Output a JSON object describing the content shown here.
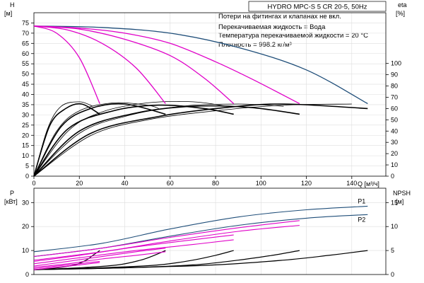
{
  "title": "HYDRO MPC-S 5 CR 20-5, 50Hz",
  "notes": [
    "Потери на фитингах и клапанах не вкл.",
    "Перекачиваемая жидкость = Вода",
    "Температура перекачиваемой жидкости = 20 °C",
    "Плотность = 998.2 кг/м³"
  ],
  "colors": {
    "performance": "#1f4e79",
    "efficiency": "#000000",
    "pink": "#e000c8",
    "grid": "#dddddd",
    "axis": "#000000"
  },
  "chart_data": [
    {
      "type": "line",
      "name": "qh-efficiency",
      "xlabel": "Q [м³/ч]",
      "ylabel_left": "H",
      "ylabel_left_unit": "[м]",
      "ylabel_right": "eta",
      "ylabel_right_unit": "[%]",
      "xlim": [
        0,
        155
      ],
      "ylim": [
        0,
        80
      ],
      "y2lim": [
        0,
        145
      ],
      "x_ticks": [
        0,
        20,
        40,
        60,
        80,
        100,
        120,
        140
      ],
      "y_ticks": [
        0,
        5,
        10,
        15,
        20,
        25,
        30,
        35,
        40,
        45,
        50,
        55,
        60,
        65,
        70,
        75
      ],
      "y2_ticks": [
        0,
        10,
        20,
        30,
        40,
        50,
        60,
        70,
        80,
        90,
        100
      ],
      "head_series": [
        {
          "color": "#1f4e79",
          "x": [
            0,
            30,
            60,
            90,
            120,
            147
          ],
          "y": [
            73.5,
            72.8,
            70,
            63,
            52,
            35.5
          ]
        },
        {
          "color": "#e000c8",
          "x": [
            0,
            20,
            40,
            60,
            80,
            97,
            117
          ],
          "y": [
            73.5,
            72.5,
            70,
            65,
            56,
            47,
            35.5
          ]
        },
        {
          "color": "#e000c8",
          "x": [
            0,
            20,
            40,
            60,
            75,
            88
          ],
          "y": [
            73.5,
            72,
            67,
            59,
            48,
            35.5
          ]
        },
        {
          "color": "#e000c8",
          "x": [
            0,
            15,
            30,
            45,
            58
          ],
          "y": [
            73.5,
            71.5,
            65,
            53,
            35.5
          ]
        },
        {
          "color": "#e000c8",
          "x": [
            0,
            10,
            20,
            29
          ],
          "y": [
            73.5,
            70,
            58,
            35.5
          ]
        }
      ],
      "efficiency_series": [
        {
          "width": 1.6,
          "x": [
            0,
            25,
            55,
            85,
            110,
            147
          ],
          "y": [
            0,
            38,
            53,
            61,
            64,
            60
          ]
        },
        {
          "width": 1.6,
          "x": [
            0,
            20,
            45,
            70,
            95,
            117
          ],
          "y": [
            0,
            40,
            56,
            62,
            61,
            55
          ]
        },
        {
          "width": 1.6,
          "x": [
            0,
            15,
            35,
            55,
            75,
            88
          ],
          "y": [
            0,
            42,
            58,
            63,
            60,
            55
          ]
        },
        {
          "width": 1.6,
          "x": [
            0,
            12,
            25,
            40,
            58
          ],
          "y": [
            0,
            44,
            60,
            64,
            55
          ]
        },
        {
          "width": 1.6,
          "x": [
            0,
            7,
            14,
            21,
            29
          ],
          "y": [
            0,
            45,
            60,
            64,
            55
          ]
        },
        {
          "width": 0.8,
          "x": [
            0,
            25,
            50,
            80,
            110,
            140
          ],
          "y": [
            0,
            36,
            50,
            58,
            63,
            64
          ]
        },
        {
          "width": 0.8,
          "x": [
            0,
            20,
            40,
            65,
            90,
            110
          ],
          "y": [
            0,
            38,
            53,
            62,
            64,
            62
          ]
        },
        {
          "width": 0.8,
          "x": [
            0,
            15,
            30,
            50,
            70,
            85
          ],
          "y": [
            0,
            40,
            57,
            65,
            66,
            62
          ]
        },
        {
          "width": 0.8,
          "x": [
            0,
            10,
            20,
            35,
            50,
            55
          ],
          "y": [
            0,
            40,
            58,
            65,
            63,
            60
          ]
        },
        {
          "width": 0.8,
          "x": [
            0,
            6,
            12,
            20,
            26
          ],
          "y": [
            0,
            42,
            62,
            66,
            62
          ]
        }
      ]
    },
    {
      "type": "line",
      "name": "power-npsh",
      "xlabel": "Q [м³/ч]",
      "ylabel_left": "P",
      "ylabel_left_unit": "[кВт]",
      "ylabel_right": "NPSH",
      "ylabel_right_unit": "[м]",
      "xlim": [
        0,
        155
      ],
      "ylim": [
        0,
        36
      ],
      "y2lim": [
        0,
        18
      ],
      "y_ticks": [
        0,
        10,
        20,
        30
      ],
      "y2_ticks": [
        0,
        5,
        10,
        15
      ],
      "power_series": [
        {
          "label": "P1",
          "color": "#1f4e79",
          "x": [
            0,
            30,
            60,
            90,
            120,
            147
          ],
          "y": [
            9.5,
            13,
            19,
            24,
            27,
            28.5
          ]
        },
        {
          "label": "P2",
          "color": "#1f4e79",
          "x": [
            0,
            30,
            60,
            90,
            120,
            147
          ],
          "y": [
            7.5,
            11,
            16,
            20.5,
            23.5,
            25
          ]
        },
        {
          "color": "#e000c8",
          "x": [
            0,
            30,
            60,
            90,
            117
          ],
          "y": [
            7.5,
            11,
            15.5,
            19.5,
            22.5
          ]
        },
        {
          "color": "#e000c8",
          "x": [
            0,
            30,
            60,
            90,
            117
          ],
          "y": [
            6,
            9.5,
            14,
            18,
            20.5
          ]
        },
        {
          "color": "#e000c8",
          "x": [
            0,
            20,
            45,
            70,
            88
          ],
          "y": [
            5.5,
            8,
            11.5,
            14.5,
            16.5
          ]
        },
        {
          "color": "#e000c8",
          "x": [
            0,
            20,
            45,
            70,
            88
          ],
          "y": [
            4.5,
            7,
            10,
            12.5,
            14.5
          ]
        },
        {
          "color": "#e000c8",
          "x": [
            0,
            15,
            30,
            45,
            58
          ],
          "y": [
            3.5,
            5.5,
            7.5,
            9.5,
            11
          ]
        },
        {
          "color": "#e000c8",
          "x": [
            0,
            15,
            30,
            45,
            58
          ],
          "y": [
            3,
            4.5,
            6.5,
            8,
            9.5
          ]
        },
        {
          "color": "#e000c8",
          "x": [
            0,
            10,
            20,
            29
          ],
          "y": [
            2.5,
            3.5,
            4.5,
            5.5
          ]
        },
        {
          "color": "#e000c8",
          "x": [
            0,
            10,
            20,
            29
          ],
          "y": [
            2,
            3,
            4,
            5
          ]
        }
      ],
      "npsh_series": [
        {
          "x": [
            0,
            40,
            80,
            110,
            130,
            147
          ],
          "y": [
            1,
            1.4,
            2,
            3,
            4,
            5
          ]
        },
        {
          "x": [
            0,
            40,
            70,
            90,
            105,
            117
          ],
          "y": [
            1,
            1.4,
            2,
            3,
            4,
            5
          ]
        },
        {
          "x": [
            0,
            30,
            55,
            70,
            80,
            88
          ],
          "y": [
            1,
            1.4,
            2,
            3,
            4,
            5
          ]
        },
        {
          "x": [
            0,
            20,
            37,
            47,
            53,
            58
          ],
          "y": [
            1,
            1.4,
            2,
            3,
            4,
            5
          ]
        },
        {
          "x": [
            0,
            10,
            18,
            23,
            26,
            29
          ],
          "y": [
            1,
            1.4,
            2,
            3,
            4,
            5
          ]
        }
      ]
    }
  ]
}
